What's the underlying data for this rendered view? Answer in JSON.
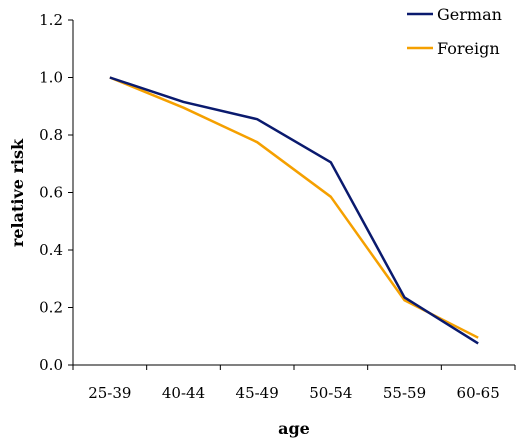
{
  "chart_data": {
    "type": "line",
    "title": "",
    "xlabel": "age",
    "ylabel": "relative risk",
    "categories": [
      "25-39",
      "40-44",
      "45-49",
      "50-54",
      "55-59",
      "60-65"
    ],
    "ylim": [
      0,
      1.2
    ],
    "yticks": [
      "0.0",
      "0.2",
      "0.4",
      "0.6",
      "0.8",
      "1.0",
      "1.2"
    ],
    "grid": false,
    "legend_position": "top-right",
    "series": [
      {
        "name": "German",
        "color": "#0a1a6e",
        "values": [
          1.0,
          0.915,
          0.855,
          0.705,
          0.235,
          0.075
        ]
      },
      {
        "name": "Foreign",
        "color": "#f5a000",
        "values": [
          1.0,
          0.895,
          0.775,
          0.585,
          0.225,
          0.095
        ]
      }
    ]
  }
}
